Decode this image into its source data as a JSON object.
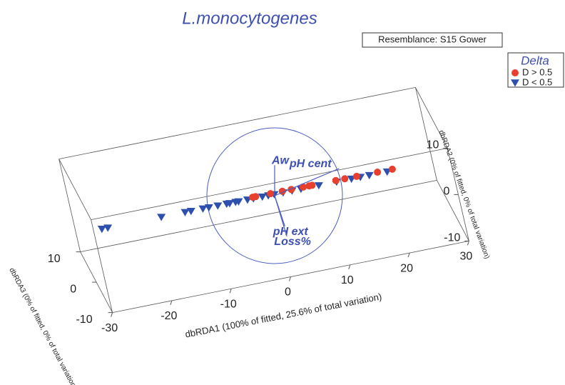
{
  "chart_data": {
    "type": "scatter3d",
    "title": "L.monocytogenes",
    "annotation": "Resemblance: S15 Gower",
    "legend_title": "Delta",
    "legend_position": "upper right",
    "xlabel": "dbRDA1 (100% of fitted, 25.6% of total variation)",
    "ylabel": "dbRDA2 (0% of fitted, 0% of total variation)",
    "zlabel": "dbRDA3 (0% of fitted, 0% of total variation)",
    "xlim": [
      -30,
      30
    ],
    "ylim": [
      -10,
      10
    ],
    "zlim": [
      -10,
      10
    ],
    "xticks": [
      -30,
      -20,
      -10,
      0,
      10,
      20,
      30
    ],
    "yticks": [
      -10,
      0,
      10
    ],
    "zticks": [
      -10,
      0,
      10
    ],
    "series": [
      {
        "name": "D < 0.5",
        "color": "#2e4fae",
        "marker": "triangle-down",
        "x": [
          -27,
          -26,
          -17,
          -13,
          -12,
          -10,
          -9,
          -7.5,
          -6,
          -5.5,
          -4.5,
          -4,
          -2.5,
          -1.5,
          0,
          1,
          2,
          3.5,
          5,
          6.5,
          9.5,
          12.5,
          15,
          16.5,
          18,
          21
        ],
        "y": [
          0,
          0,
          0,
          0,
          0,
          0,
          0,
          0,
          0,
          0,
          0,
          0,
          0,
          0,
          0,
          0,
          0,
          0,
          0,
          0,
          0,
          0,
          0,
          0,
          0,
          0
        ],
        "z": [
          1,
          1,
          1,
          1,
          1,
          1,
          1,
          1,
          1,
          1,
          1,
          1,
          1,
          1,
          1,
          1,
          1,
          1,
          1,
          1,
          1,
          1,
          1,
          1,
          1,
          1
        ]
      },
      {
        "name": "D > 0.5",
        "color": "#e8402f",
        "marker": "circle",
        "x": [
          -1.5,
          -1,
          1.5,
          3.5,
          5,
          7,
          8,
          8.5,
          12.5,
          14,
          16,
          19.5,
          22
        ],
        "y": [
          0,
          0,
          0,
          0,
          0,
          0,
          0,
          0,
          0,
          0,
          0,
          0,
          0
        ],
        "z": [
          1.5,
          1.5,
          1.5,
          1.5,
          1.5,
          1.5,
          1.5,
          1.5,
          1.5,
          1.5,
          1.5,
          1.5,
          1.5
        ]
      }
    ],
    "vectors": [
      {
        "name": "Aw",
        "x": 0,
        "y": 0.45
      },
      {
        "name": "pH cent",
        "x": 0.95,
        "y": 0.4
      },
      {
        "name": "pH ext",
        "x": 0.15,
        "y": -0.45
      },
      {
        "name": "Loss%",
        "x": 0.18,
        "y": -0.6
      }
    ]
  }
}
